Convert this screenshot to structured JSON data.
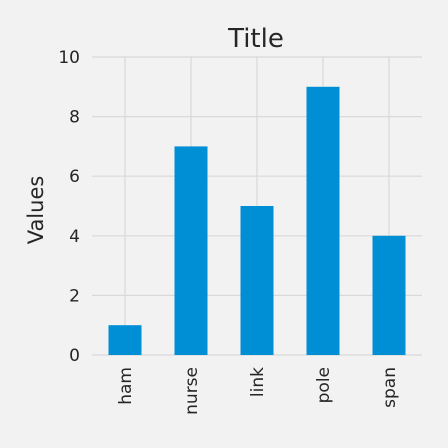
{
  "chart_data": {
    "type": "bar",
    "title": "Title",
    "xlabel": "",
    "ylabel": "Values",
    "categories": [
      "ham",
      "nurse",
      "link",
      "pole",
      "span"
    ],
    "values": [
      1,
      7,
      5,
      9,
      4
    ],
    "ylim": [
      0,
      10
    ],
    "yticks": [
      0,
      2,
      4,
      6,
      8,
      10
    ],
    "grid": true,
    "bar_color": "#008fd5",
    "background_color": "#f2f2f2"
  }
}
